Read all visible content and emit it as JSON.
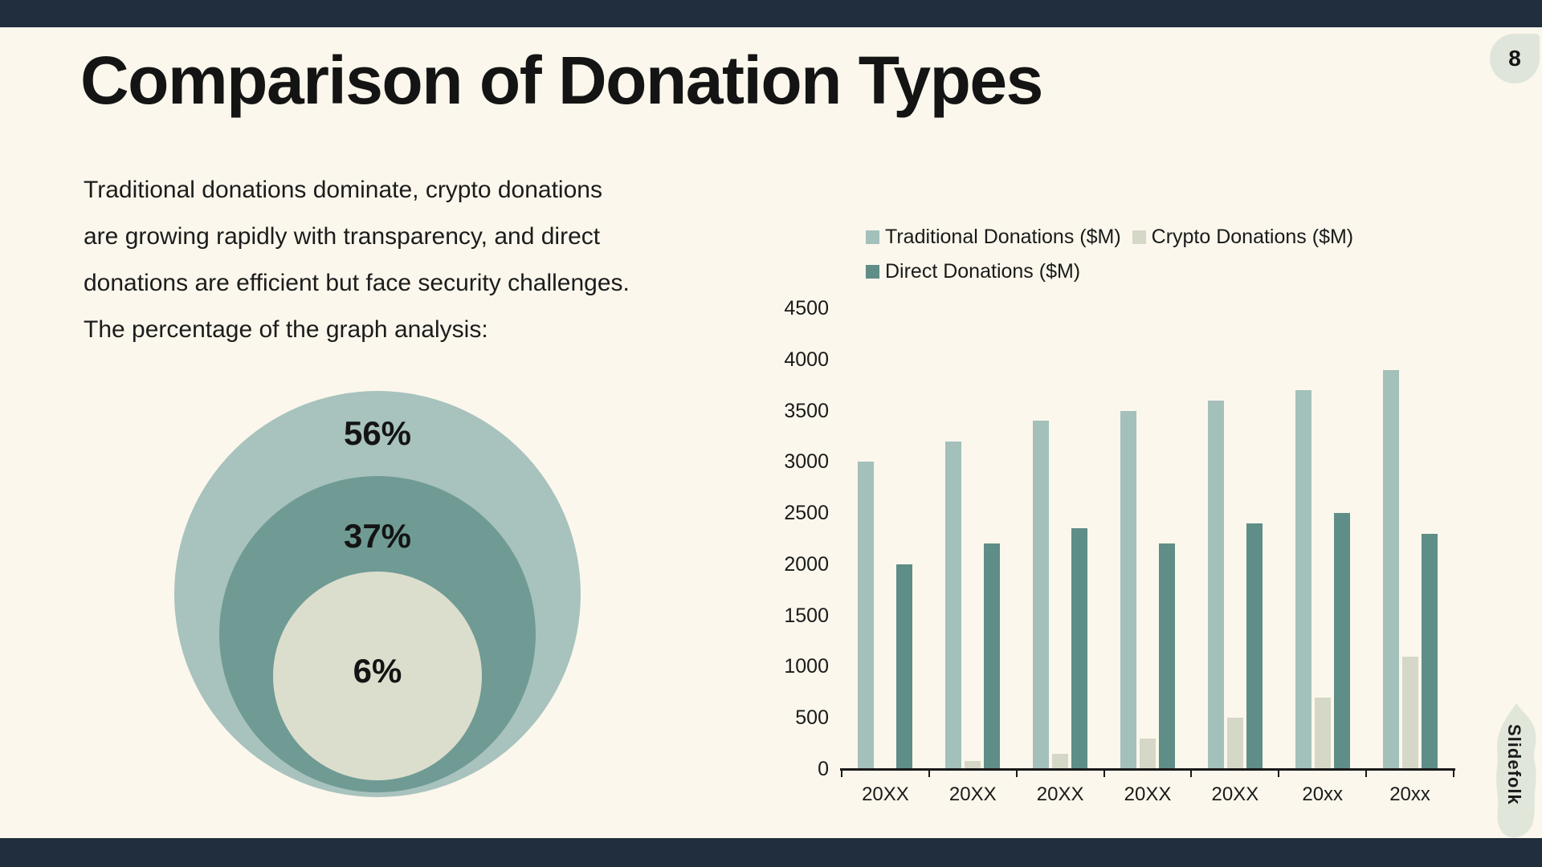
{
  "slide": {
    "title": "Comparison of Donation Types",
    "page_number": "8",
    "brand": "Slidefolk",
    "intro_lines": [
      "Traditional donations dominate, crypto donations",
      "are growing rapidly with transparency, and direct",
      "donations are efficient but face security challenges.",
      "The percentage of the graph analysis:"
    ],
    "colors": {
      "background": "#fbf7ec",
      "accent_navy": "#202e3d",
      "text": "#191919",
      "badge_bg": "#dfe5da"
    }
  },
  "chart_data": [
    {
      "type": "bar",
      "title": "",
      "categories": [
        "20XX",
        "20XX",
        "20XX",
        "20XX",
        "20XX",
        "20xx",
        "20xx"
      ],
      "series": [
        {
          "name": "Traditional Donations ($M)",
          "color": "#a3c0bb",
          "values": [
            3000,
            3200,
            3400,
            3500,
            3600,
            3700,
            3900
          ]
        },
        {
          "name": "Crypto Donations ($M)",
          "color": "#d6d8c7",
          "values": [
            0,
            75,
            150,
            300,
            500,
            700,
            1100
          ]
        },
        {
          "name": "Direct Donations ($M)",
          "color": "#5f8d87",
          "values": [
            2000,
            2200,
            2350,
            2200,
            2400,
            2500,
            2300
          ]
        }
      ],
      "xlabel": "",
      "ylabel": "",
      "ylim": [
        0,
        4500
      ],
      "ytick_step": 500,
      "legend_position": "top-left",
      "grid": false,
      "axis_color": "#1a1a1a"
    },
    {
      "type": "pie",
      "variant": "nested-proportional-circles",
      "labels": [
        "56%",
        "37%",
        "6%"
      ],
      "values": [
        56,
        37,
        6
      ],
      "colors": [
        "#a8c2bd",
        "#6f9b94",
        "#dcdecd"
      ]
    }
  ]
}
